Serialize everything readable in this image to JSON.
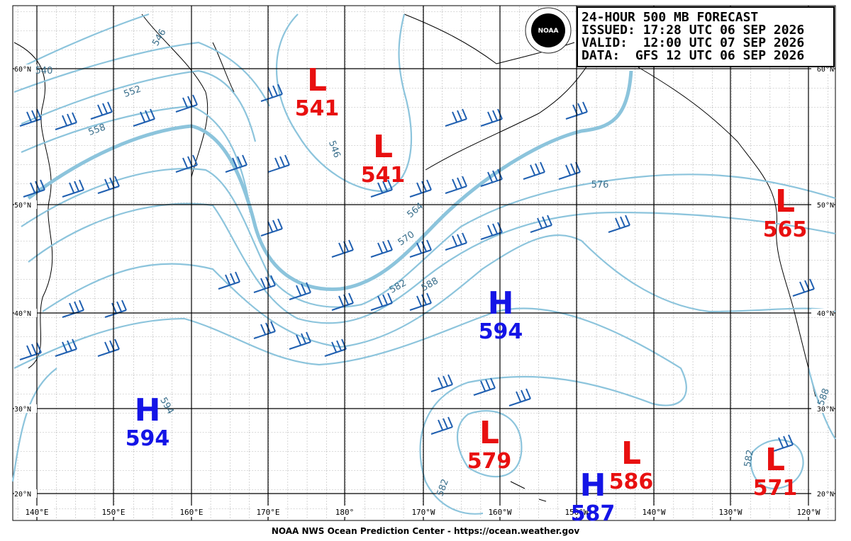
{
  "header": {
    "lines": [
      "24-HOUR 500 MB FORECAST",
      "ISSUED: 17:28 UTC 06 SEP 2026",
      "VALID:  12:00 UTC 07 SEP 2026",
      "DATA:  GFS 12 UTC 06 SEP 2026"
    ]
  },
  "logo": "NOAA",
  "longitudes": [
    "140°E",
    "150°E",
    "160°E",
    "170°E",
    "180°",
    "170°W",
    "160°W",
    "150°W",
    "140°W",
    "130°W",
    "120°W"
  ],
  "latitudes": [
    "60°N",
    "50°N",
    "40°N",
    "30°N",
    "20°N"
  ],
  "systems": [
    {
      "type": "L",
      "value": "541",
      "color": "#e81010"
    },
    {
      "type": "L",
      "value": "541",
      "color": "#e81010"
    },
    {
      "type": "L",
      "value": "565",
      "color": "#e81010"
    },
    {
      "type": "H",
      "value": "594",
      "color": "#1414e6"
    },
    {
      "type": "H",
      "value": "594",
      "color": "#1414e6"
    },
    {
      "type": "L",
      "value": "579",
      "color": "#e81010"
    },
    {
      "type": "L",
      "value": "586",
      "color": "#e81010"
    },
    {
      "type": "H",
      "value": "587",
      "color": "#1414e6"
    },
    {
      "type": "L",
      "value": "571",
      "color": "#e81010"
    }
  ],
  "contour_labels": [
    "540",
    "546",
    "552",
    "558",
    "546",
    "564",
    "570",
    "576",
    "582",
    "588",
    "582",
    "582",
    "594",
    "588"
  ],
  "footer": "NOAA NWS Ocean Prediction Center - https://ocean.weather.gov"
}
